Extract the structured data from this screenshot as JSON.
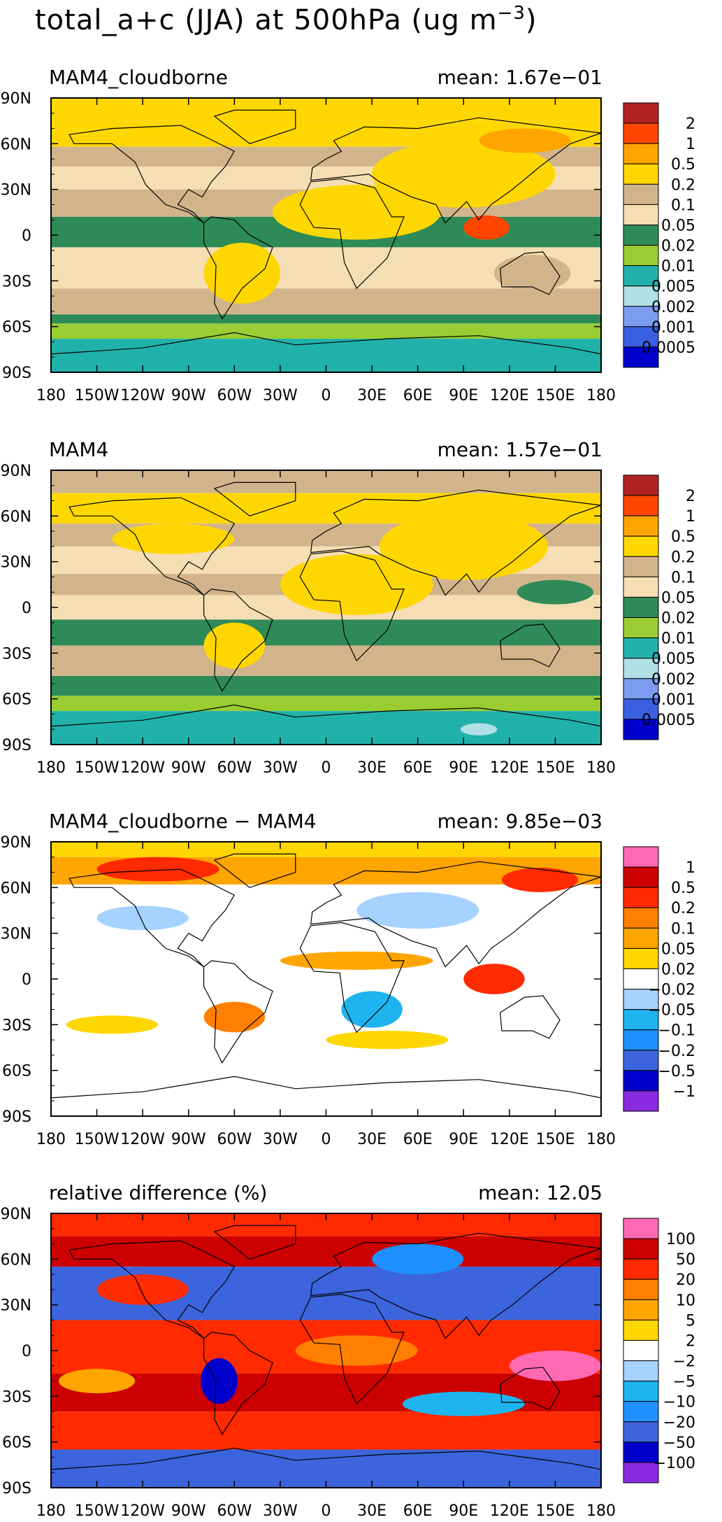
{
  "title": "total_a+c (JJA) at 500hPa (ug m⁻³)",
  "title_main": "total_a+c (JJA) at 500hPa (ug m",
  "title_sup": "−3",
  "title_end": ")",
  "chart_data": [
    {
      "type": "heatmap",
      "id": "panel1",
      "panel_title": "MAM4_cloudborne",
      "mean_label": "mean:  1.67e−01",
      "xlabel": "",
      "ylabel": "",
      "xlim": [
        -180,
        180
      ],
      "ylim": [
        -90,
        90
      ],
      "xticks": [
        "180",
        "150W",
        "120W",
        "90W",
        "60W",
        "30W",
        "0",
        "30E",
        "60E",
        "90E",
        "120E",
        "150E",
        "180"
      ],
      "yticks": [
        "90N",
        "60N",
        "30N",
        "0",
        "30S",
        "60S",
        "90S"
      ],
      "legend": {
        "labels": [
          "2",
          "1",
          "0.5",
          "0.2",
          "0.1",
          "0.05",
          "0.02",
          "0.01",
          "0.005",
          "0.002",
          "0.001",
          "0.0005"
        ],
        "colors": [
          "#b22222",
          "#ff4500",
          "#ffa500",
          "#ffd700",
          "#d2b48c",
          "#f5deb3",
          "#2e8b57",
          "#9acd32",
          "#20b2aa",
          "#b0e0e6",
          "#7b9cf0",
          "#3a5fe0",
          "#0000cd"
        ]
      },
      "bands": [
        {
          "lat": [
            75,
            90
          ],
          "color": "#ffd700"
        },
        {
          "lat": [
            58,
            75
          ],
          "color": "#ffd700"
        },
        {
          "lat": [
            45,
            58
          ],
          "color": "#d2b48c"
        },
        {
          "lat": [
            30,
            45
          ],
          "color": "#f5deb3"
        },
        {
          "lat": [
            12,
            30
          ],
          "color": "#d2b48c"
        },
        {
          "lat": [
            -8,
            12
          ],
          "color": "#2e8b57"
        },
        {
          "lat": [
            -35,
            -8
          ],
          "color": "#f5deb3"
        },
        {
          "lat": [
            -52,
            -35
          ],
          "color": "#d2b48c"
        },
        {
          "lat": [
            -58,
            -52
          ],
          "color": "#2e8b57"
        },
        {
          "lat": [
            -68,
            -58
          ],
          "color": "#9acd32"
        },
        {
          "lat": [
            -90,
            -68
          ],
          "color": "#20b2aa"
        }
      ],
      "blobs": [
        {
          "lon": 20,
          "lat": 15,
          "rx": 55,
          "ry": 18,
          "color": "#ffd700"
        },
        {
          "lon": 90,
          "lat": 40,
          "rx": 60,
          "ry": 22,
          "color": "#ffd700"
        },
        {
          "lon": 130,
          "lat": 62,
          "rx": 30,
          "ry": 8,
          "color": "#ffa500"
        },
        {
          "lon": 105,
          "lat": 5,
          "rx": 15,
          "ry": 8,
          "color": "#ff4500"
        },
        {
          "lon": -55,
          "lat": -25,
          "rx": 25,
          "ry": 20,
          "color": "#ffd700"
        },
        {
          "lon": 135,
          "lat": -25,
          "rx": 25,
          "ry": 12,
          "color": "#d2b48c"
        },
        {
          "lon": 160,
          "lat": 5,
          "rx": 20,
          "ry": 7,
          "color": "#2e8b57"
        }
      ]
    },
    {
      "type": "heatmap",
      "id": "panel2",
      "panel_title": "MAM4",
      "mean_label": "mean:  1.57e−01",
      "xlabel": "",
      "ylabel": "",
      "xlim": [
        -180,
        180
      ],
      "ylim": [
        -90,
        90
      ],
      "xticks": [
        "180",
        "150W",
        "120W",
        "90W",
        "60W",
        "30W",
        "0",
        "30E",
        "60E",
        "90E",
        "120E",
        "150E",
        "180"
      ],
      "yticks": [
        "90N",
        "60N",
        "30N",
        "0",
        "30S",
        "60S",
        "90S"
      ],
      "legend": {
        "labels": [
          "2",
          "1",
          "0.5",
          "0.2",
          "0.1",
          "0.05",
          "0.02",
          "0.01",
          "0.005",
          "0.002",
          "0.001",
          "0.0005"
        ],
        "colors": [
          "#b22222",
          "#ff4500",
          "#ffa500",
          "#ffd700",
          "#d2b48c",
          "#f5deb3",
          "#2e8b57",
          "#9acd32",
          "#20b2aa",
          "#b0e0e6",
          "#7b9cf0",
          "#3a5fe0",
          "#0000cd"
        ]
      },
      "bands": [
        {
          "lat": [
            75,
            90
          ],
          "color": "#d2b48c"
        },
        {
          "lat": [
            55,
            75
          ],
          "color": "#ffd700"
        },
        {
          "lat": [
            40,
            55
          ],
          "color": "#d2b48c"
        },
        {
          "lat": [
            22,
            40
          ],
          "color": "#f5deb3"
        },
        {
          "lat": [
            8,
            22
          ],
          "color": "#d2b48c"
        },
        {
          "lat": [
            -8,
            8
          ],
          "color": "#f5deb3"
        },
        {
          "lat": [
            -25,
            -8
          ],
          "color": "#2e8b57"
        },
        {
          "lat": [
            -45,
            -25
          ],
          "color": "#d2b48c"
        },
        {
          "lat": [
            -58,
            -45
          ],
          "color": "#2e8b57"
        },
        {
          "lat": [
            -68,
            -58
          ],
          "color": "#9acd32"
        },
        {
          "lat": [
            -90,
            -68
          ],
          "color": "#20b2aa"
        }
      ],
      "blobs": [
        {
          "lon": 20,
          "lat": 15,
          "rx": 50,
          "ry": 20,
          "color": "#ffd700"
        },
        {
          "lon": 90,
          "lat": 40,
          "rx": 55,
          "ry": 22,
          "color": "#ffd700"
        },
        {
          "lon": -100,
          "lat": 45,
          "rx": 40,
          "ry": 10,
          "color": "#ffd700"
        },
        {
          "lon": 150,
          "lat": 10,
          "rx": 25,
          "ry": 8,
          "color": "#2e8b57"
        },
        {
          "lon": -60,
          "lat": -25,
          "rx": 20,
          "ry": 15,
          "color": "#ffd700"
        },
        {
          "lon": 100,
          "lat": -80,
          "rx": 12,
          "ry": 4,
          "color": "#b0e0e6"
        }
      ]
    },
    {
      "type": "heatmap",
      "id": "panel3",
      "panel_title": "MAM4_cloudborne − MAM4",
      "mean_label": "mean:  9.85e−03",
      "xlabel": "",
      "ylabel": "",
      "xlim": [
        -180,
        180
      ],
      "ylim": [
        -90,
        90
      ],
      "xticks": [
        "180",
        "150W",
        "120W",
        "90W",
        "60W",
        "30W",
        "0",
        "30E",
        "60E",
        "90E",
        "120E",
        "150E",
        "180"
      ],
      "yticks": [
        "90N",
        "60N",
        "30N",
        "0",
        "30S",
        "60S",
        "90S"
      ],
      "legend": {
        "labels": [
          "1",
          "0.5",
          "0.2",
          "0.1",
          "0.05",
          "0.02",
          "−0.02",
          "−0.05",
          "−0.1",
          "−0.2",
          "−0.5",
          "−1"
        ],
        "colors": [
          "#ff69b4",
          "#cc0000",
          "#ff2a00",
          "#ff7f00",
          "#ffa500",
          "#ffd700",
          "#ffffff",
          "#a6d2ff",
          "#1eb4f0",
          "#1e90ff",
          "#3c64dc",
          "#0000cd",
          "#8a2be2"
        ]
      },
      "bands": [
        {
          "lat": [
            80,
            90
          ],
          "color": "#ffd700"
        },
        {
          "lat": [
            62,
            80
          ],
          "color": "#ffa500"
        },
        {
          "lat": [
            50,
            62
          ],
          "color": "#ffffff"
        },
        {
          "lat": [
            -90,
            50
          ],
          "color": "#ffffff"
        }
      ],
      "blobs": [
        {
          "lon": -110,
          "lat": 72,
          "rx": 40,
          "ry": 8,
          "color": "#ff2a00"
        },
        {
          "lon": 140,
          "lat": 65,
          "rx": 25,
          "ry": 8,
          "color": "#ff2a00"
        },
        {
          "lon": 60,
          "lat": 45,
          "rx": 40,
          "ry": 12,
          "color": "#a6d2ff"
        },
        {
          "lon": -120,
          "lat": 40,
          "rx": 30,
          "ry": 8,
          "color": "#a6d2ff"
        },
        {
          "lon": 20,
          "lat": 12,
          "rx": 50,
          "ry": 6,
          "color": "#ffa500"
        },
        {
          "lon": 110,
          "lat": 0,
          "rx": 20,
          "ry": 10,
          "color": "#ff2a00"
        },
        {
          "lon": -60,
          "lat": -25,
          "rx": 20,
          "ry": 10,
          "color": "#ff7f00"
        },
        {
          "lon": 30,
          "lat": -20,
          "rx": 20,
          "ry": 12,
          "color": "#1eb4f0"
        },
        {
          "lon": -140,
          "lat": -30,
          "rx": 30,
          "ry": 6,
          "color": "#ffd700"
        },
        {
          "lon": 40,
          "lat": -40,
          "rx": 40,
          "ry": 6,
          "color": "#ffd700"
        }
      ]
    },
    {
      "type": "heatmap",
      "id": "panel4",
      "panel_title": "relative difference (%)",
      "mean_label": "mean:  12.05",
      "xlabel": "",
      "ylabel": "",
      "xlim": [
        -180,
        180
      ],
      "ylim": [
        -90,
        90
      ],
      "xticks": [
        "180",
        "150W",
        "120W",
        "90W",
        "60W",
        "30W",
        "0",
        "30E",
        "60E",
        "90E",
        "120E",
        "150E",
        "180"
      ],
      "yticks": [
        "90N",
        "60N",
        "30N",
        "0",
        "30S",
        "60S",
        "90S"
      ],
      "legend": {
        "labels": [
          "100",
          "50",
          "20",
          "10",
          "5",
          "2",
          "−2",
          "−5",
          "−10",
          "−20",
          "−50",
          "−100"
        ],
        "colors": [
          "#ff69b4",
          "#cc0000",
          "#ff2a00",
          "#ff7f00",
          "#ffa500",
          "#ffd700",
          "#ffffff",
          "#a6d2ff",
          "#1eb4f0",
          "#1e90ff",
          "#3c64dc",
          "#0000cd",
          "#8a2be2"
        ]
      },
      "bands": [
        {
          "lat": [
            75,
            90
          ],
          "color": "#ff2a00"
        },
        {
          "lat": [
            55,
            75
          ],
          "color": "#cc0000"
        },
        {
          "lat": [
            20,
            55
          ],
          "color": "#3c64dc"
        },
        {
          "lat": [
            -15,
            20
          ],
          "color": "#ff2a00"
        },
        {
          "lat": [
            -40,
            -15
          ],
          "color": "#cc0000"
        },
        {
          "lat": [
            -65,
            -40
          ],
          "color": "#ff2a00"
        },
        {
          "lat": [
            -90,
            -65
          ],
          "color": "#3c64dc"
        }
      ],
      "blobs": [
        {
          "lon": 150,
          "lat": -10,
          "rx": 30,
          "ry": 10,
          "color": "#ff69b4"
        },
        {
          "lon": -120,
          "lat": 40,
          "rx": 30,
          "ry": 10,
          "color": "#ff2a00"
        },
        {
          "lon": 60,
          "lat": 60,
          "rx": 30,
          "ry": 10,
          "color": "#1e90ff"
        },
        {
          "lon": -70,
          "lat": -20,
          "rx": 12,
          "ry": 15,
          "color": "#0000cd"
        },
        {
          "lon": 20,
          "lat": 0,
          "rx": 40,
          "ry": 10,
          "color": "#ff7f00"
        },
        {
          "lon": 90,
          "lat": -35,
          "rx": 40,
          "ry": 8,
          "color": "#1eb4f0"
        },
        {
          "lon": -150,
          "lat": -20,
          "rx": 25,
          "ry": 8,
          "color": "#ffa500"
        }
      ]
    }
  ]
}
